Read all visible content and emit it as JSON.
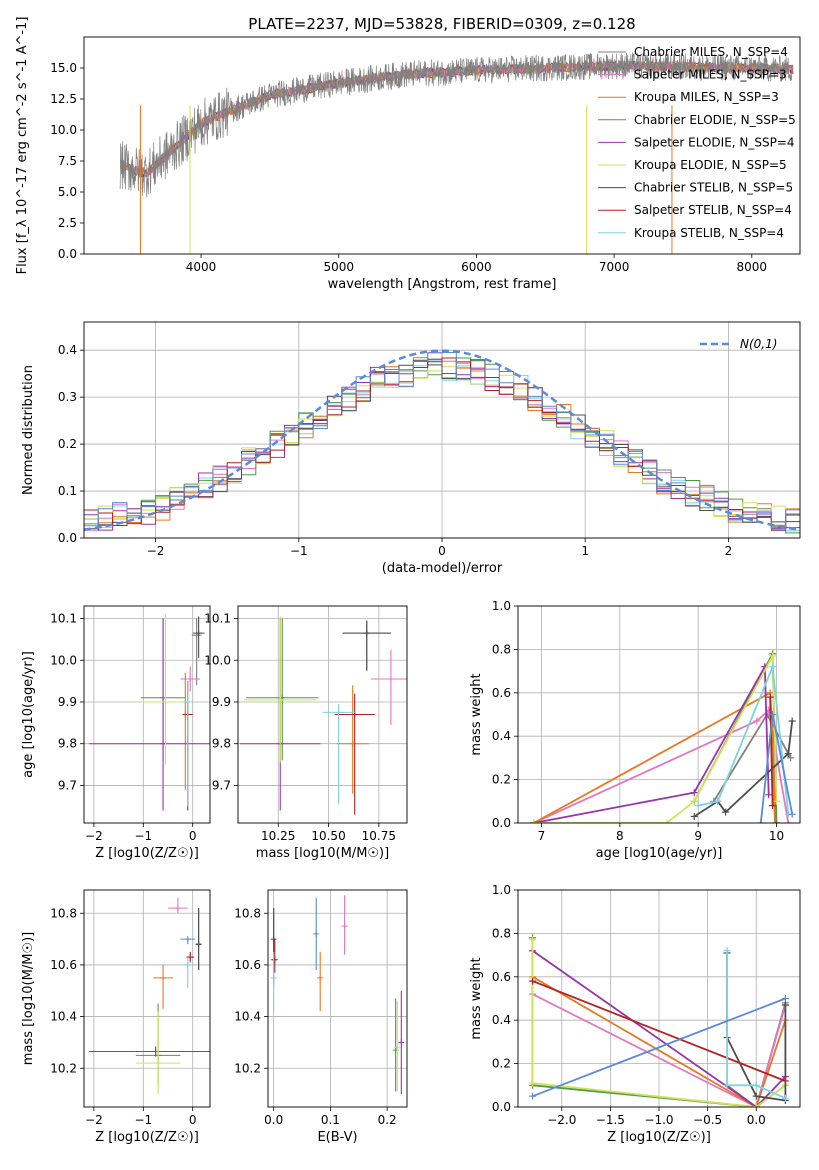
{
  "title": "PLATE=2237, MJD=53828, FIBERID=0309, z=0.128",
  "models": [
    {
      "name": "Chabrier MILES",
      "nssp": "4",
      "color": "#808080"
    },
    {
      "name": "Salpeter MILES",
      "nssp": "3",
      "color": "#e377c2"
    },
    {
      "name": "Kroupa MILES",
      "nssp": "3",
      "color": "#e87722"
    },
    {
      "name": "Chabrier ELODIE",
      "nssp": "5",
      "color": "#4c9a4c"
    },
    {
      "name": "Salpeter ELODIE",
      "nssp": "4",
      "color": "#9933aa"
    },
    {
      "name": "Kroupa ELODIE",
      "nssp": "5",
      "color": "#d4e157"
    },
    {
      "name": "Chabrier STELIB",
      "nssp": "5",
      "color": "#4d4d4d"
    },
    {
      "name": "Salpeter STELIB",
      "nssp": "4",
      "color": "#b22222"
    },
    {
      "name": "Kroupa STELIB",
      "nssp": "4",
      "color": "#7dd3e0"
    }
  ],
  "extra_colors": {
    "blue": "#5b8bd8",
    "gaussian": "#5b8bd8"
  },
  "chart_data": [
    {
      "type": "line",
      "id": "spectrum",
      "title": "PLATE=2237, MJD=53828, FIBERID=0309, z=0.128",
      "xlabel": "wavelength [Angstrom, rest frame]",
      "ylabel": "Flux [f_λ 10^-17 erg cm^-2 s^-1 A^-1]",
      "xlim": [
        3150,
        8350
      ],
      "ylim": [
        0,
        17.5
      ],
      "xticks": [
        4000,
        5000,
        6000,
        7000,
        8000
      ],
      "yticks": [
        0.0,
        2.5,
        5.0,
        7.5,
        10.0,
        12.5,
        15.0
      ],
      "continuum_x": [
        3400,
        3600,
        3800,
        4000,
        4200,
        4500,
        5000,
        5500,
        6000,
        6500,
        7000,
        7500,
        8000,
        8300
      ],
      "continuum_y": [
        7.2,
        6.5,
        8.5,
        10.5,
        11.5,
        12.8,
        13.8,
        14.5,
        14.8,
        15.0,
        15.2,
        15.1,
        15.0,
        14.9
      ],
      "legend_labels": [
        "Chabrier MILES, N_SSP=4",
        "Salpeter MILES, N_SSP=3",
        "Kroupa MILES, N_SSP=3",
        "Chabrier ELODIE, N_SSP=5",
        "Salpeter ELODIE, N_SSP=4",
        "Kroupa ELODIE, N_SSP=5",
        "Chabrier STELIB, N_SSP=5",
        "Salpeter STELIB, N_SSP=4",
        "Kroupa STELIB, N_SSP=4"
      ]
    },
    {
      "type": "line",
      "id": "residuals",
      "xlabel": "(data-model)/error",
      "ylabel": "Normed distribution",
      "xlim": [
        -2.5,
        2.5
      ],
      "ylim": [
        0,
        0.46
      ],
      "xticks": [
        -2,
        -1,
        0,
        1,
        2
      ],
      "yticks": [
        0.0,
        0.1,
        0.2,
        0.3,
        0.4
      ],
      "legend": "N(0,1)",
      "bin_width": 0.1,
      "series_shape_x": [
        -2.5,
        -2.0,
        -1.5,
        -1.0,
        -0.5,
        0.0,
        0.5,
        1.0,
        1.5,
        2.0,
        2.5
      ],
      "series_shape_y": [
        0.035,
        0.06,
        0.135,
        0.23,
        0.33,
        0.37,
        0.33,
        0.23,
        0.13,
        0.065,
        0.035
      ]
    },
    {
      "type": "scatter",
      "id": "age-vs-Z",
      "xlabel": "Z [log10(Z/Z☉)]",
      "ylabel": "age [log10(age/yr)]",
      "xlim": [
        -2.2,
        0.35
      ],
      "ylim": [
        9.61,
        10.13
      ],
      "xticks": [
        -2,
        -1,
        0
      ],
      "yticks": [
        9.7,
        9.8,
        9.9,
        10.0,
        10.1
      ],
      "points": [
        {
          "model": 0,
          "x": 0.08,
          "y": 10.06,
          "xerr": 0.1,
          "yerr": [
            0.12,
            0.04
          ]
        },
        {
          "model": 1,
          "x": -0.05,
          "y": 9.955,
          "xerr": 0.2,
          "yerr": [
            0.03,
            0.03
          ]
        },
        {
          "model": 2,
          "x": -0.15,
          "y": 9.87,
          "xerr": 0.05,
          "yerr": [
            0.18,
            0.1
          ]
        },
        {
          "model": 3,
          "x": -0.6,
          "y": 9.91,
          "xerr": 0.45,
          "yerr": [
            0.15,
            0.19
          ]
        },
        {
          "model": 4,
          "x": -0.6,
          "y": 9.8,
          "xerr": 1.5,
          "yerr": [
            0.16,
            0.3
          ]
        },
        {
          "model": 5,
          "x": -0.55,
          "y": 9.9,
          "xerr": 0.5,
          "yerr": [
            0.15,
            0.21
          ]
        },
        {
          "model": 6,
          "x": 0.12,
          "y": 10.065,
          "xerr": 0.12,
          "yerr": [
            0.06,
            0.04
          ]
        },
        {
          "model": 7,
          "x": -0.1,
          "y": 9.87,
          "xerr": 0.1,
          "yerr": [
            0.23,
            0.08
          ]
        },
        {
          "model": 8,
          "x": -0.1,
          "y": 9.9,
          "xerr": 0.1,
          "yerr": [
            0.25,
            0.05
          ]
        }
      ]
    },
    {
      "type": "scatter",
      "id": "age-vs-mass",
      "xlabel": "mass [log10(M/M☉)]",
      "ylabel": "",
      "xlim": [
        10.05,
        10.89
      ],
      "ylim": [
        9.61,
        10.13
      ],
      "xticks": [
        10.25,
        10.5,
        10.75
      ],
      "xtick_labels": [
        "10.25",
        "10.50",
        "10.75"
      ],
      "yticks": [
        9.7,
        9.8,
        9.9,
        10.0,
        10.1
      ],
      "points": [
        {
          "model": 0,
          "x": 10.69,
          "y": 10.065,
          "xerr": 0.12,
          "yerr": [
            0.09,
            0.03
          ]
        },
        {
          "model": 1,
          "x": 10.81,
          "y": 9.955,
          "xerr": 0.1,
          "yerr": [
            0.11,
            0.07
          ]
        },
        {
          "model": 2,
          "x": 10.62,
          "y": 9.8,
          "xerr": 0.08,
          "yerr": [
            0.12,
            0.14
          ]
        },
        {
          "model": 3,
          "x": 10.27,
          "y": 9.91,
          "xerr": 0.18,
          "yerr": [
            0.15,
            0.19
          ]
        },
        {
          "model": 4,
          "x": 10.26,
          "y": 9.8,
          "xerr": 0.2,
          "yerr": [
            0.16,
            0.3
          ]
        },
        {
          "model": 5,
          "x": 10.26,
          "y": 9.905,
          "xerr": 0.18,
          "yerr": [
            0.15,
            0.2
          ]
        },
        {
          "model": 6,
          "x": 10.69,
          "y": 10.065,
          "xerr": 0.12,
          "yerr": [
            0.09,
            0.03
          ]
        },
        {
          "model": 7,
          "x": 10.63,
          "y": 9.87,
          "xerr": 0.1,
          "yerr": [
            0.24,
            0.05
          ]
        },
        {
          "model": 8,
          "x": 10.55,
          "y": 9.875,
          "xerr": 0.08,
          "yerr": [
            0.22,
            0.02
          ]
        }
      ]
    },
    {
      "type": "line",
      "id": "massweight-vs-age",
      "xlabel": "age [log10(age/yr)]",
      "ylabel": "mass weight",
      "xlim": [
        6.7,
        10.3
      ],
      "ylim": [
        0,
        1.0
      ],
      "xticks": [
        7,
        8,
        9,
        10
      ],
      "yticks": [
        0.0,
        0.2,
        0.4,
        0.6,
        0.8,
        1.0
      ],
      "series": [
        {
          "model": 0,
          "x": [
            9.2,
            9.88,
            10.18
          ],
          "y": [
            0.1,
            0.5,
            0.3
          ]
        },
        {
          "model": 1,
          "x": [
            6.9,
            9.75,
            9.9,
            10.15
          ],
          "y": [
            0.0,
            0.47,
            0.52,
            0.0
          ]
        },
        {
          "model": 2,
          "x": [
            6.9,
            9.92,
            9.95,
            9.98
          ],
          "y": [
            0.0,
            0.6,
            0.4,
            0.0
          ]
        },
        {
          "model": 3,
          "x": [
            8.95,
            9.95,
            10.0
          ],
          "y": [
            0.1,
            0.78,
            0.0
          ]
        },
        {
          "model": 4,
          "x": [
            6.9,
            8.95,
            9.85,
            9.9
          ],
          "y": [
            0.0,
            0.14,
            0.72,
            0.13
          ]
        },
        {
          "model": 5,
          "x": [
            6.9,
            8.6,
            8.95,
            9.95,
            10.0
          ],
          "y": [
            0.0,
            0.0,
            0.1,
            0.77,
            0.1
          ]
        },
        {
          "model": 6,
          "x": [
            8.95,
            9.25,
            9.35,
            10.15,
            10.2
          ],
          "y": [
            0.03,
            0.1,
            0.05,
            0.32,
            0.47
          ]
        },
        {
          "model": 7,
          "x": [
            9.92,
            9.95
          ],
          "y": [
            0.58,
            0.08
          ]
        },
        {
          "model": 8,
          "x": [
            9.0,
            9.25,
            9.95,
            10.15
          ],
          "y": [
            0.08,
            0.1,
            0.72,
            0.04
          ]
        },
        {
          "model": "blue",
          "x": [
            9.8,
            9.95,
            10.2
          ],
          "y": [
            0.0,
            0.5,
            0.04
          ]
        }
      ]
    },
    {
      "type": "scatter",
      "id": "mass-vs-Z",
      "xlabel": "Z [log10(Z/Z☉)]",
      "ylabel": "mass [log10(M/M☉)]",
      "xlim": [
        -2.2,
        0.35
      ],
      "ylim": [
        10.05,
        10.89
      ],
      "xticks": [
        -2,
        -1,
        0
      ],
      "yticks": [
        10.2,
        10.4,
        10.6,
        10.8
      ],
      "points": [
        {
          "model": 0,
          "x": 0.12,
          "y": 10.68,
          "xerr": 0.05,
          "yerr": [
            0.1,
            0.14
          ]
        },
        {
          "model": 1,
          "x": -0.3,
          "y": 10.82,
          "xerr": 0.2,
          "yerr": [
            0.02,
            0.04
          ]
        },
        {
          "model": 2,
          "x": -0.6,
          "y": 10.55,
          "xerr": 0.2,
          "yerr": [
            0.12,
            0.05
          ]
        },
        {
          "model": 3,
          "x": -0.7,
          "y": 10.25,
          "xerr": 0.45,
          "yerr": [
            0.12,
            0.2
          ]
        },
        {
          "model": 4,
          "x": -0.75,
          "y": 10.265,
          "xerr": 1.35,
          "yerr": [
            0.02,
            0.02
          ]
        },
        {
          "model": 5,
          "x": -0.7,
          "y": 10.22,
          "xerr": 0.45,
          "yerr": [
            0.12,
            0.2
          ]
        },
        {
          "model": 6,
          "x": 0.12,
          "y": 10.68,
          "xerr": 0.05,
          "yerr": [
            0.1,
            0.14
          ]
        },
        {
          "model": 7,
          "x": -0.05,
          "y": 10.63,
          "xerr": 0.08,
          "yerr": [
            0.02,
            0.02
          ]
        },
        {
          "model": 8,
          "x": -0.1,
          "y": 10.6,
          "xerr": 0.08,
          "yerr": [
            0.09,
            0.03
          ]
        },
        {
          "model": "blue",
          "x": -0.1,
          "y": 10.7,
          "xerr": 0.15,
          "yerr": [
            0.02,
            0.0
          ]
        }
      ]
    },
    {
      "type": "scatter",
      "id": "mass-vs-EBV",
      "xlabel": "E(B-V)",
      "ylabel": "",
      "xlim": [
        -0.01,
        0.235
      ],
      "ylim": [
        10.05,
        10.89
      ],
      "xticks": [
        0.0,
        0.1,
        0.2
      ],
      "yticks": [
        10.2,
        10.4,
        10.6,
        10.8
      ],
      "points": [
        {
          "model": 0,
          "x": 0.0,
          "y": 10.62,
          "xerr": 0,
          "yerr": [
            0.1,
            0.2
          ]
        },
        {
          "model": 1,
          "x": 0.125,
          "y": 10.75,
          "xerr": 0,
          "yerr": [
            0.11,
            0.12
          ]
        },
        {
          "model": 2,
          "x": 0.082,
          "y": 10.55,
          "xerr": 0,
          "yerr": [
            0.13,
            0.1
          ]
        },
        {
          "model": 3,
          "x": 0.215,
          "y": 10.27,
          "xerr": 0,
          "yerr": [
            0.16,
            0.2
          ]
        },
        {
          "model": 4,
          "x": 0.225,
          "y": 10.3,
          "xerr": 0,
          "yerr": [
            0.2,
            0.2
          ]
        },
        {
          "model": 5,
          "x": 0.218,
          "y": 10.28,
          "xerr": 0,
          "yerr": [
            0.17,
            0.18
          ]
        },
        {
          "model": 6,
          "x": 0.0,
          "y": 10.7,
          "xerr": 0,
          "yerr": [
            0.1,
            0.12
          ]
        },
        {
          "model": 7,
          "x": 0.002,
          "y": 10.62,
          "xerr": 0,
          "yerr": [
            0.05,
            0.08
          ]
        },
        {
          "model": 8,
          "x": 0.0,
          "y": 10.55,
          "xerr": 0,
          "yerr": [
            0.13,
            0.1
          ]
        },
        {
          "model": "blue",
          "x": 0.075,
          "y": 10.72,
          "xerr": 0,
          "yerr": [
            0.14,
            0.14
          ]
        }
      ]
    },
    {
      "type": "line",
      "id": "massweight-vs-Z",
      "xlabel": "Z [log10(Z/Z☉)]",
      "ylabel": "mass weight",
      "xlim": [
        -2.45,
        0.45
      ],
      "ylim": [
        0,
        1.0
      ],
      "xticks": [
        -2.0,
        -1.5,
        -1.0,
        -0.5,
        0.0
      ],
      "xtick_labels": [
        "−2.0",
        "−1.5",
        "−1.0",
        "−0.5",
        "0.0"
      ],
      "yticks": [
        0.0,
        0.2,
        0.4,
        0.6,
        0.8,
        1.0
      ],
      "series": [
        {
          "model": 0,
          "x": [
            -0.3,
            0.0,
            0.3
          ],
          "y": [
            0.1,
            0.0,
            0.48
          ]
        },
        {
          "model": 1,
          "x": [
            -2.3,
            0.0,
            0.3
          ],
          "y": [
            0.52,
            0.0,
            0.47
          ]
        },
        {
          "model": 2,
          "x": [
            -2.3,
            0.0,
            0.3
          ],
          "y": [
            0.6,
            0.0,
            0.4
          ]
        },
        {
          "model": 3,
          "x": [
            -2.3,
            -2.3,
            0.0,
            0.3
          ],
          "y": [
            0.78,
            0.1,
            0.0,
            0.1
          ]
        },
        {
          "model": 4,
          "x": [
            -2.3,
            0.0,
            0.3
          ],
          "y": [
            0.72,
            0.0,
            0.14
          ]
        },
        {
          "model": 5,
          "x": [
            -2.3,
            -2.3,
            0.0,
            0.3
          ],
          "y": [
            0.77,
            0.11,
            0.0,
            0.1
          ]
        },
        {
          "model": 6,
          "x": [
            -0.3,
            -0.3,
            0.0,
            0.3,
            0.3
          ],
          "y": [
            0.71,
            0.32,
            0.05,
            0.03,
            0.47
          ]
        },
        {
          "model": 7,
          "x": [
            -2.3,
            0.3
          ],
          "y": [
            0.58,
            0.12
          ]
        },
        {
          "model": 8,
          "x": [
            -0.3,
            -0.3,
            0.0,
            0.3
          ],
          "y": [
            0.72,
            0.1,
            0.1,
            0.04
          ]
        },
        {
          "model": "blue",
          "x": [
            -2.3,
            0.3
          ],
          "y": [
            0.05,
            0.5
          ]
        }
      ]
    }
  ]
}
